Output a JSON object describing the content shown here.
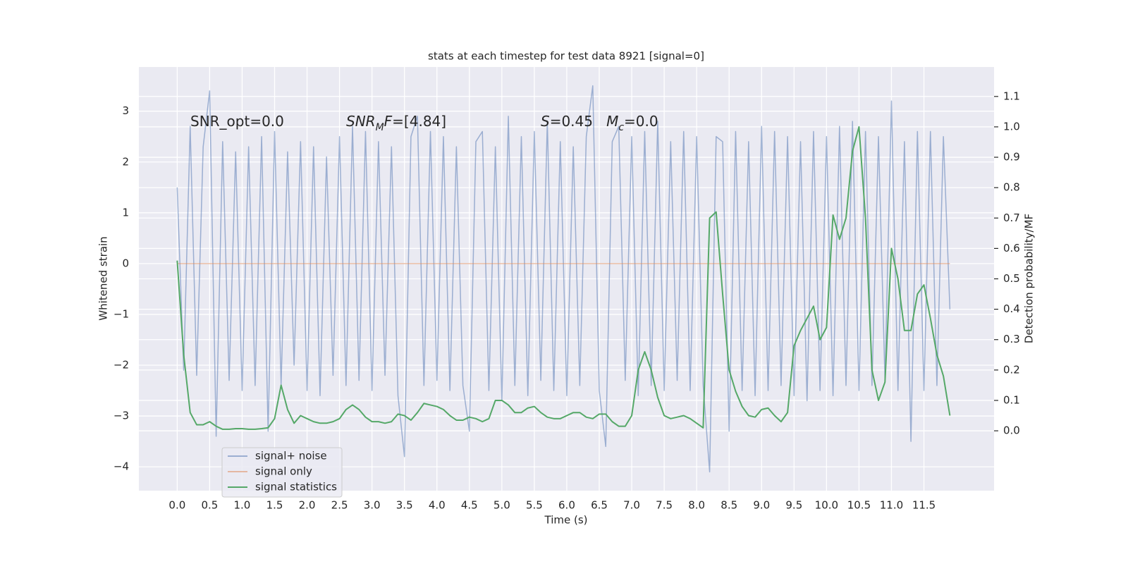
{
  "chart_data": {
    "type": "line",
    "title": "stats at each timestep for test data 8921 [signal=0]",
    "xlabel": "Time (s)",
    "ylabel": "Whitened strain",
    "y2label": "Detection probability/MF",
    "x": [
      0,
      0.1,
      0.2,
      0.3,
      0.4,
      0.5,
      0.6,
      0.7,
      0.8,
      0.9,
      1,
      1.1,
      1.2,
      1.3,
      1.4,
      1.5,
      1.6,
      1.7,
      1.8,
      1.9,
      2,
      2.1,
      2.2,
      2.3,
      2.4,
      2.5,
      2.6,
      2.7,
      2.8,
      2.9,
      3,
      3.1,
      3.2,
      3.3,
      3.4,
      3.5,
      3.6,
      3.7,
      3.8,
      3.9,
      4,
      4.1,
      4.2,
      4.3,
      4.4,
      4.5,
      4.6,
      4.7,
      4.8,
      4.9,
      5,
      5.1,
      5.2,
      5.3,
      5.4,
      5.5,
      5.6,
      5.7,
      5.8,
      5.9,
      6,
      6.1,
      6.2,
      6.3,
      6.4,
      6.5,
      6.6,
      6.7,
      6.8,
      6.9,
      7,
      7.1,
      7.2,
      7.3,
      7.4,
      7.5,
      7.6,
      7.7,
      7.8,
      7.9,
      8,
      8.1,
      8.2,
      8.3,
      8.4,
      8.5,
      8.6,
      8.7,
      8.8,
      8.9,
      9,
      9.1,
      9.2,
      9.3,
      9.4,
      9.5,
      9.6,
      9.7,
      9.8,
      9.9,
      10,
      10.1,
      10.2,
      10.3,
      10.4,
      10.5,
      10.6,
      10.7,
      10.8,
      10.9,
      11,
      11.1,
      11.2,
      11.3,
      11.4,
      11.5,
      11.6,
      11.7,
      11.8,
      11.9
    ],
    "series": [
      {
        "name": "signal+ noise",
        "color": "#4c72b0",
        "alpha": 0.5,
        "values": [
          1.5,
          -2.1,
          2.7,
          -2.2,
          2.3,
          3.4,
          -3.4,
          2.4,
          -2.3,
          2.2,
          -2.5,
          2.3,
          -2.4,
          2.5,
          -3.3,
          2.6,
          -2.4,
          2.2,
          -2.0,
          2.4,
          -2.5,
          2.3,
          -2.6,
          2.1,
          -2.2,
          2.5,
          -2.4,
          2.7,
          -2.3,
          2.6,
          -2.5,
          2.4,
          -2.2,
          2.3,
          -2.6,
          -3.8,
          2.5,
          2.9,
          -2.4,
          2.6,
          -2.3,
          2.5,
          -2.5,
          2.3,
          -2.4,
          -3.3,
          2.4,
          2.6,
          -2.5,
          2.3,
          -2.7,
          2.9,
          -2.4,
          2.5,
          -2.6,
          2.6,
          -2.3,
          2.8,
          -2.5,
          2.4,
          -2.6,
          2.3,
          -2.4,
          2.5,
          3.5,
          -2.5,
          -3.6,
          2.4,
          2.7,
          -2.3,
          2.5,
          -2.6,
          2.6,
          -2.4,
          2.8,
          -2.5,
          2.4,
          -2.3,
          2.6,
          -2.5,
          2.5,
          -2.4,
          -4.1,
          2.5,
          2.4,
          -3.3,
          2.6,
          -2.5,
          2.4,
          -2.6,
          2.7,
          -2.5,
          2.6,
          -2.4,
          2.5,
          -2.6,
          2.4,
          -2.7,
          2.6,
          -2.5,
          2.5,
          -2.6,
          2.7,
          -2.4,
          2.8,
          -2.5,
          2.6,
          -2.4,
          2.5,
          -2.3,
          3.2,
          -2.5,
          2.4,
          -3.5,
          2.6,
          -2.5,
          2.6,
          -2.4,
          2.5,
          -0.9
        ]
      },
      {
        "name": "signal only",
        "color": "#dd8452",
        "alpha": 0.5,
        "values": [
          0,
          0,
          0,
          0,
          0,
          0,
          0,
          0,
          0,
          0,
          0,
          0,
          0,
          0,
          0,
          0,
          0,
          0,
          0,
          0,
          0,
          0,
          0,
          0,
          0,
          0,
          0,
          0,
          0,
          0,
          0,
          0,
          0,
          0,
          0,
          0,
          0,
          0,
          0,
          0,
          0,
          0,
          0,
          0,
          0,
          0,
          0,
          0,
          0,
          0,
          0,
          0,
          0,
          0,
          0,
          0,
          0,
          0,
          0,
          0,
          0,
          0,
          0,
          0,
          0,
          0,
          0,
          0,
          0,
          0,
          0,
          0,
          0,
          0,
          0,
          0,
          0,
          0,
          0,
          0,
          0,
          0,
          0,
          0,
          0,
          0,
          0,
          0,
          0,
          0,
          0,
          0,
          0,
          0,
          0,
          0,
          0,
          0,
          0,
          0,
          0,
          0,
          0,
          0,
          0,
          0,
          0,
          0,
          0,
          0,
          0,
          0,
          0,
          0,
          0,
          0,
          0,
          0,
          0,
          0
        ]
      },
      {
        "name": "signal statistics",
        "color": "#55a868",
        "alpha": 1,
        "axis": "y2",
        "values": [
          0.56,
          0.25,
          0.06,
          0.02,
          0.02,
          0.03,
          0.015,
          0.005,
          0.005,
          0.007,
          0.007,
          0.005,
          0.005,
          0.007,
          0.01,
          0.04,
          0.15,
          0.07,
          0.025,
          0.05,
          0.04,
          0.03,
          0.025,
          0.025,
          0.03,
          0.04,
          0.07,
          0.085,
          0.07,
          0.045,
          0.03,
          0.03,
          0.025,
          0.03,
          0.055,
          0.05,
          0.035,
          0.06,
          0.09,
          0.085,
          0.08,
          0.07,
          0.05,
          0.035,
          0.035,
          0.045,
          0.04,
          0.03,
          0.04,
          0.1,
          0.1,
          0.085,
          0.06,
          0.06,
          0.075,
          0.08,
          0.06,
          0.045,
          0.04,
          0.04,
          0.05,
          0.06,
          0.06,
          0.045,
          0.04,
          0.055,
          0.055,
          0.03,
          0.015,
          0.015,
          0.05,
          0.2,
          0.26,
          0.2,
          0.11,
          0.05,
          0.04,
          0.045,
          0.05,
          0.04,
          0.025,
          0.01,
          0.7,
          0.72,
          0.45,
          0.2,
          0.13,
          0.08,
          0.05,
          0.045,
          0.07,
          0.075,
          0.05,
          0.03,
          0.06,
          0.28,
          0.33,
          0.37,
          0.41,
          0.3,
          0.34,
          0.71,
          0.63,
          0.7,
          0.92,
          1.0,
          0.7,
          0.2,
          0.1,
          0.16,
          0.6,
          0.5,
          0.33,
          0.33,
          0.45,
          0.48,
          0.37,
          0.25,
          0.18,
          0.05
        ]
      }
    ],
    "xlim": [
      -0.59,
      12.58
    ],
    "xticks": [
      {
        "value": 0,
        "label": "0.0"
      },
      0.5,
      {
        "value": 1,
        "label": "1.0"
      },
      1.5,
      {
        "value": 2,
        "label": "2.0"
      },
      2.5,
      {
        "value": 3,
        "label": "3.0"
      },
      3.5,
      {
        "value": 4,
        "label": "4.0"
      },
      4.5,
      {
        "value": 5,
        "label": "5.0"
      },
      5.5,
      {
        "value": 6,
        "label": "6.0"
      },
      6.5,
      {
        "value": 7,
        "label": "7.0"
      },
      7.5,
      {
        "value": 8,
        "label": "8.0"
      },
      8.5,
      {
        "value": 9,
        "label": "9.0"
      },
      9.5,
      {
        "value": 10,
        "label": "10.0"
      },
      10.5,
      {
        "value": 11,
        "label": "11.0"
      },
      11.5
    ],
    "ylim": [
      -4.47,
      3.87
    ],
    "yticks": [
      {
        "value": -4,
        "label": "−4"
      },
      {
        "value": -3,
        "label": "−3"
      },
      {
        "value": -2,
        "label": "−2"
      },
      {
        "value": -1,
        "label": "−1"
      },
      0,
      1,
      2,
      3
    ],
    "y2lim": [
      -0.197,
      1.197
    ],
    "y2ticks": [
      {
        "value": 0,
        "label": "0.0"
      },
      0.1,
      0.2,
      0.3,
      0.4,
      0.5,
      0.6,
      0.7,
      0.8,
      0.9,
      {
        "value": 1,
        "label": "1.0"
      },
      1.1
    ],
    "grid": true,
    "legend": "lower left",
    "annotations": [
      {
        "parts": [
          {
            "text": "SNR_opt=0.0"
          }
        ]
      },
      {
        "parts": [
          {
            "text": "SNR",
            "italic": true
          },
          {
            "text": "M",
            "italic": true,
            "sub": true
          },
          {
            "text": "F",
            "italic": true
          },
          {
            "text": "=[4.84]"
          }
        ]
      },
      {
        "parts": [
          {
            "text": "S",
            "italic": true
          },
          {
            "text": "=0.45   "
          },
          {
            "text": "M",
            "italic": true
          },
          {
            "text": "c",
            "italic": true,
            "sub": true
          },
          {
            "text": "=0.0"
          }
        ]
      }
    ]
  }
}
